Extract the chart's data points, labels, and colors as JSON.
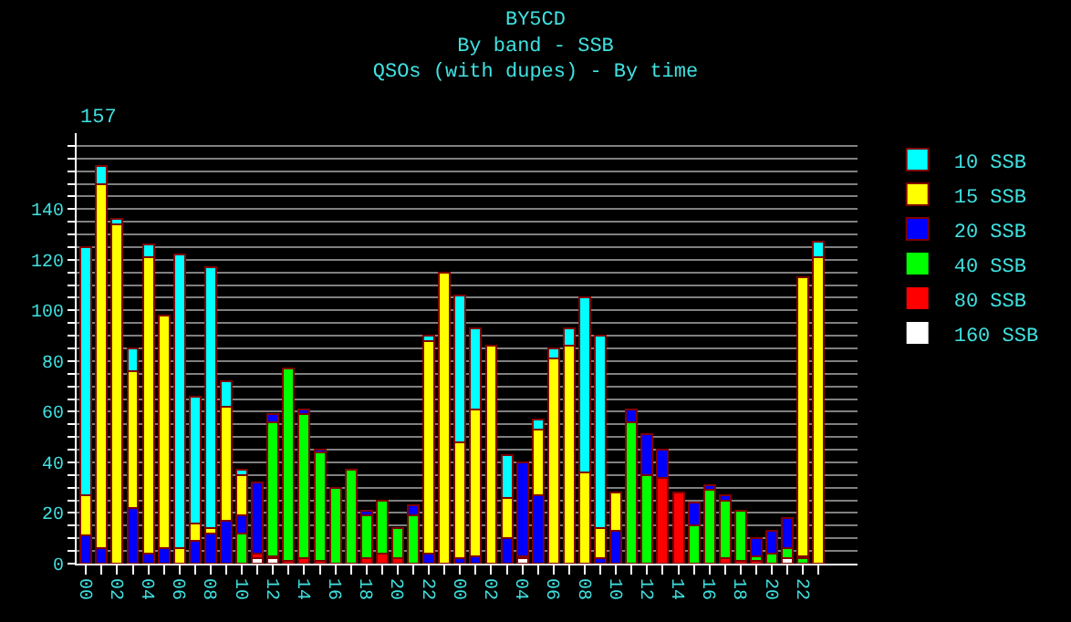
{
  "chart_data": {
    "type": "bar",
    "stacked": true,
    "title": "BY5CD",
    "subtitle": "By band - SSB\nQSOs (with dupes) - By time",
    "annotations": [
      "157"
    ],
    "categories": [
      "00",
      null,
      "02",
      null,
      "04",
      null,
      "06",
      null,
      "08",
      null,
      "10",
      null,
      "12",
      null,
      "14",
      null,
      "16",
      null,
      "18",
      null,
      "20",
      null,
      "22",
      null,
      "00",
      null,
      "02",
      null,
      "04",
      null,
      "06",
      null,
      "08",
      null,
      "10",
      null,
      "12",
      null,
      "14",
      null,
      "16",
      null,
      "18",
      null,
      "20",
      null,
      "22",
      null
    ],
    "series": [
      {
        "name": "160 SSB",
        "color": "#ffffff",
        "values": [
          0,
          0,
          0,
          0,
          0,
          0,
          0,
          0,
          0,
          0,
          0,
          2,
          2,
          0,
          0,
          0,
          0,
          0,
          0,
          0,
          0,
          0,
          0,
          0,
          0,
          0,
          0,
          0,
          2,
          0,
          0,
          0,
          0,
          0,
          0,
          0,
          0,
          0,
          0,
          0,
          0,
          0,
          0,
          0,
          0,
          2,
          0,
          0
        ]
      },
      {
        "name": "80 SSB",
        "color": "#ff0000",
        "values": [
          0,
          0,
          0,
          0,
          0,
          0,
          0,
          0,
          0,
          0,
          0,
          2,
          1,
          1,
          2,
          1,
          0,
          0,
          2,
          4,
          2,
          0,
          0,
          0,
          0,
          0,
          0,
          0,
          0,
          0,
          0,
          0,
          0,
          0,
          0,
          0,
          0,
          34,
          28,
          0,
          0,
          2,
          1,
          1,
          0,
          0,
          0,
          0
        ]
      },
      {
        "name": "40 SSB",
        "color": "#00ff00",
        "values": [
          0,
          0,
          0,
          0,
          0,
          0,
          0,
          0,
          0,
          0,
          12,
          0,
          53,
          76,
          57,
          43,
          30,
          37,
          17,
          21,
          12,
          19,
          0,
          0,
          0,
          0,
          0,
          0,
          1,
          0,
          0,
          0,
          0,
          0,
          0,
          56,
          35,
          0,
          0,
          15,
          29,
          23,
          20,
          2,
          4,
          4,
          2,
          0
        ]
      },
      {
        "name": "20 SSB",
        "color": "#0000ff",
        "values": [
          11,
          6,
          0,
          22,
          4,
          6,
          0,
          9,
          12,
          17,
          7,
          28,
          3,
          0,
          2,
          1,
          0,
          0,
          2,
          0,
          0,
          4,
          4,
          0,
          2,
          3,
          0,
          10,
          37,
          27,
          0,
          0,
          0,
          2,
          13,
          5,
          16,
          11,
          0,
          9,
          2,
          2,
          0,
          7,
          9,
          12,
          1,
          0
        ]
      },
      {
        "name": "15 SSB",
        "color": "#ffff00",
        "values": [
          16,
          144,
          134,
          54,
          117,
          92,
          6,
          7,
          2,
          45,
          16,
          0,
          0,
          0,
          0,
          0,
          0,
          0,
          0,
          0,
          0,
          0,
          84,
          115,
          46,
          58,
          86,
          16,
          0,
          26,
          81,
          86,
          36,
          12,
          15,
          0,
          0,
          0,
          0,
          0,
          0,
          0,
          0,
          0,
          0,
          0,
          110,
          121
        ]
      },
      {
        "name": "10 SSB",
        "color": "#00ffff",
        "values": [
          98,
          7,
          2,
          9,
          5,
          0,
          116,
          50,
          103,
          10,
          2,
          0,
          0,
          0,
          0,
          0,
          0,
          0,
          0,
          0,
          0,
          0,
          2,
          0,
          58,
          32,
          0,
          17,
          0,
          4,
          4,
          7,
          69,
          76,
          0,
          0,
          0,
          0,
          0,
          0,
          0,
          0,
          0,
          0,
          0,
          0,
          0,
          6
        ]
      }
    ],
    "ylim": [
      0,
      170
    ],
    "yticks": [
      0,
      {
        "value": 5,
        "label": null
      },
      {
        "value": 10,
        "label": null
      },
      {
        "value": 15,
        "label": null
      },
      20,
      {
        "value": 25,
        "label": null
      },
      {
        "value": 30,
        "label": null
      },
      {
        "value": 35,
        "label": null
      },
      40,
      {
        "value": 45,
        "label": null
      },
      {
        "value": 50,
        "label": null
      },
      {
        "value": 55,
        "label": null
      },
      60,
      {
        "value": 65,
        "label": null
      },
      {
        "value": 70,
        "label": null
      },
      {
        "value": 75,
        "label": null
      },
      80,
      {
        "value": 85,
        "label": null
      },
      {
        "value": 90,
        "label": null
      },
      {
        "value": 95,
        "label": null
      },
      100,
      {
        "value": 105,
        "label": null
      },
      {
        "value": 110,
        "label": null
      },
      {
        "value": 115,
        "label": null
      },
      120,
      {
        "value": 125,
        "label": null
      },
      {
        "value": 130,
        "label": null
      },
      {
        "value": 135,
        "label": null
      },
      140,
      {
        "value": 145,
        "label": null
      },
      {
        "value": 150,
        "label": null
      },
      {
        "value": 155,
        "label": null
      },
      {
        "value": 160,
        "label": null
      },
      {
        "value": 165,
        "label": null
      }
    ],
    "grid": "y",
    "legend": "right"
  }
}
